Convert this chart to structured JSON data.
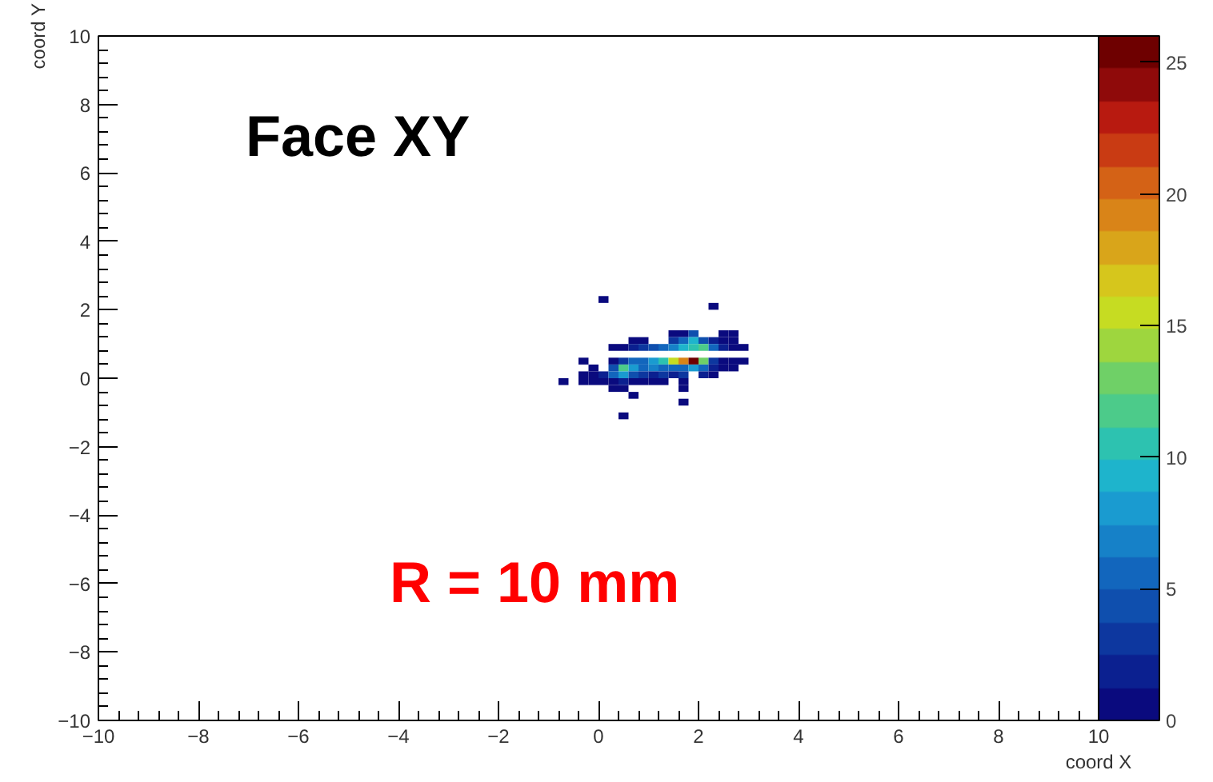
{
  "chart_data": {
    "type": "scatter",
    "marker": "square",
    "xlabel": "coord X",
    "ylabel": "coord Y",
    "annotations": [
      "Face XY",
      "R = 10 mm"
    ],
    "xlim": [
      -10,
      10
    ],
    "ylim": [
      -10,
      10
    ],
    "xticks": [
      -10,
      -8,
      -6,
      -4,
      -2,
      0,
      2,
      4,
      6,
      8,
      10
    ],
    "yticks": [
      -10,
      -8,
      -6,
      -4,
      -2,
      0,
      2,
      4,
      6,
      8,
      10
    ],
    "clim": [
      0,
      26
    ],
    "cticks": [
      0,
      5,
      10,
      15,
      20,
      25
    ],
    "grid": false,
    "x": [
      0.1,
      2.3,
      1.5,
      1.7,
      1.9,
      2.5,
      2.7,
      0.7,
      0.9,
      1.5,
      1.7,
      1.9,
      2.1,
      2.3,
      2.5,
      2.7,
      0.3,
      0.5,
      0.7,
      0.9,
      1.1,
      1.3,
      1.5,
      1.7,
      1.9,
      2.1,
      2.3,
      2.5,
      2.7,
      2.9,
      -0.3,
      0.3,
      0.5,
      0.7,
      0.9,
      1.1,
      1.3,
      1.5,
      1.7,
      1.9,
      2.1,
      2.3,
      2.5,
      2.7,
      2.9,
      -0.1,
      0.3,
      0.5,
      0.7,
      0.9,
      1.1,
      1.3,
      1.5,
      1.7,
      1.9,
      2.1,
      2.3,
      2.5,
      2.7,
      -0.3,
      -0.1,
      0.1,
      0.3,
      0.5,
      0.7,
      0.9,
      1.1,
      1.3,
      1.5,
      1.7,
      2.1,
      2.3,
      -0.7,
      -0.3,
      -0.1,
      0.1,
      0.3,
      0.5,
      0.7,
      0.9,
      1.1,
      1.3,
      1.7,
      0.3,
      0.5,
      1.7,
      0.7,
      1.7,
      0.5
    ],
    "values": [
      2.3,
      2.1,
      1.3,
      1.3,
      1.3,
      1.3,
      1.3,
      1.1,
      1.1,
      1.1,
      1.1,
      1.1,
      1.1,
      1.1,
      1.1,
      1.1,
      0.9,
      0.9,
      0.9,
      0.9,
      0.9,
      0.9,
      0.9,
      0.9,
      0.9,
      0.9,
      0.9,
      0.9,
      0.9,
      0.9,
      0.5,
      0.5,
      0.5,
      0.5,
      0.5,
      0.5,
      0.5,
      0.5,
      0.5,
      0.5,
      0.5,
      0.5,
      0.5,
      0.5,
      0.5,
      0.3,
      0.3,
      0.3,
      0.3,
      0.3,
      0.3,
      0.3,
      0.3,
      0.3,
      0.3,
      0.3,
      0.3,
      0.3,
      0.3,
      0.1,
      0.1,
      0.1,
      0.1,
      0.1,
      0.1,
      0.1,
      0.1,
      0.1,
      0.1,
      0.1,
      0.1,
      0.1,
      -0.1,
      -0.1,
      -0.1,
      -0.1,
      -0.1,
      -0.1,
      -0.1,
      -0.1,
      -0.1,
      -0.1,
      -0.1,
      -0.3,
      -0.3,
      -0.3,
      -0.5,
      -0.7,
      -1.1
    ],
    "cvalues": [
      1,
      1,
      1,
      1,
      4,
      1,
      1,
      1,
      1,
      3,
      6,
      9,
      4,
      2,
      1,
      1,
      1,
      1,
      2,
      3,
      4,
      5,
      7,
      9,
      11,
      12,
      5,
      2,
      1,
      1,
      1,
      1,
      3,
      5,
      6,
      8,
      10,
      15,
      19,
      25,
      13,
      3,
      1,
      1,
      1,
      1,
      4,
      12,
      8,
      6,
      7,
      6,
      5,
      6,
      8,
      5,
      2,
      1,
      1,
      1,
      1,
      2,
      6,
      8,
      4,
      3,
      2,
      3,
      2,
      3,
      2,
      1,
      1,
      1,
      1,
      1,
      1,
      2,
      1,
      1,
      1,
      1,
      1,
      1,
      1,
      1,
      1,
      1,
      1
    ]
  }
}
